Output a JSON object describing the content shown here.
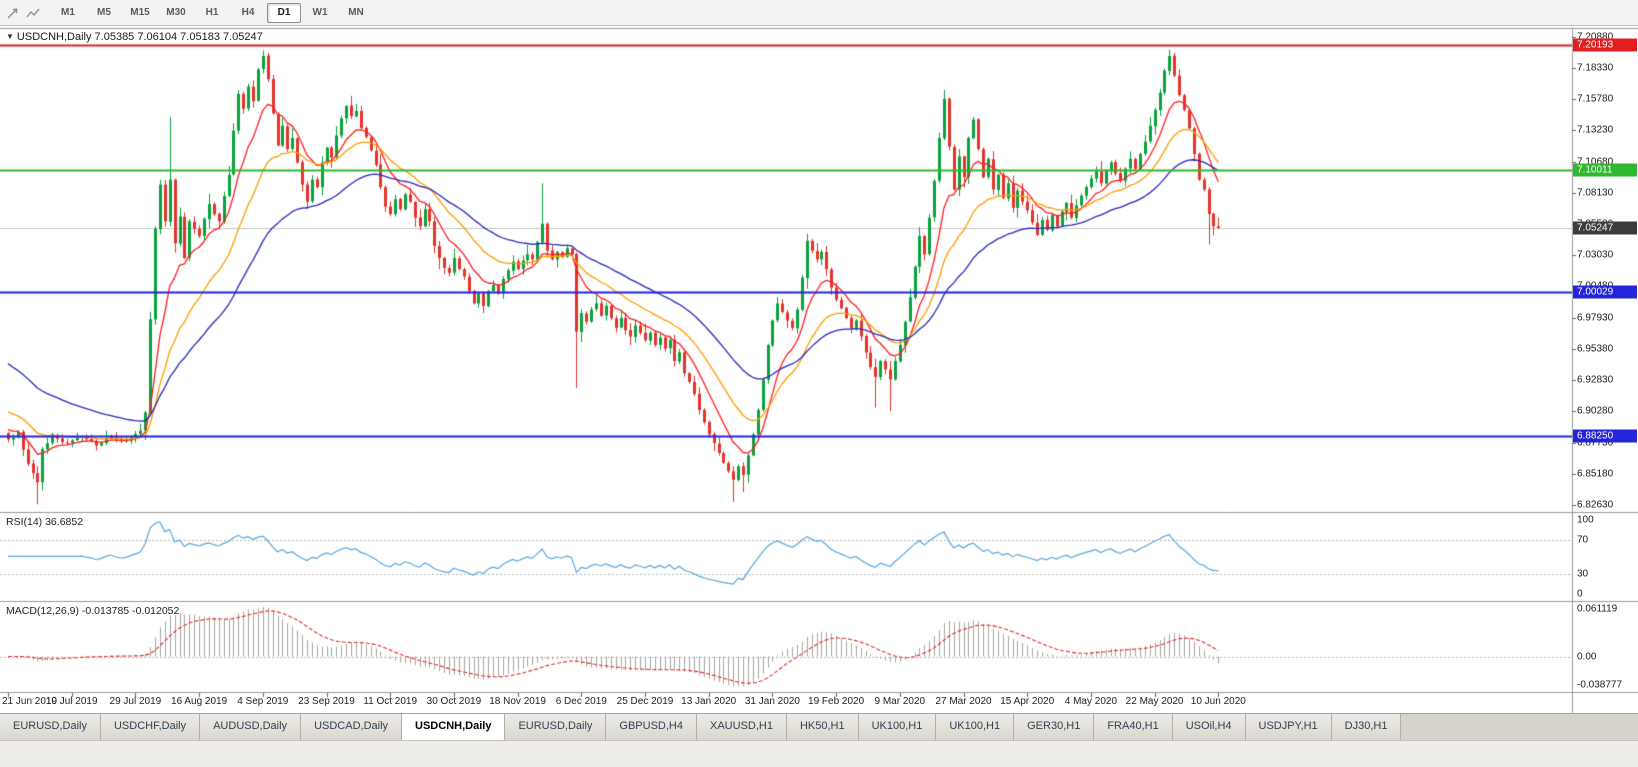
{
  "chart": {
    "title": "USDCNH,Daily 7.05385 7.06104 7.05183 7.05247",
    "symbol": "USDCNH",
    "period": "Daily"
  },
  "toolbar": {
    "timeframes": [
      "M1",
      "M5",
      "M15",
      "M30",
      "H1",
      "H4",
      "D1",
      "W1",
      "MN"
    ],
    "active_timeframe": "D1"
  },
  "indicators": {
    "rsi": {
      "label": "RSI(14) 36.6852",
      "period": 14,
      "value": 36.6852,
      "levels": [
        70,
        30
      ],
      "scale_labels": [
        "100",
        "70",
        "30",
        "0"
      ],
      "color": "#5aa7dc"
    },
    "macd": {
      "label": "MACD(12,26,9) -0.013785 -0.012052",
      "fast": 12,
      "slow": 26,
      "signal_period": 9,
      "value": -0.013785,
      "signal_value": -0.012052,
      "scale_labels": {
        "top": "0.061119",
        "zero": "0.00",
        "bottom": "-0.038777"
      },
      "histogram_color": "#a6a6a6",
      "signal_color": "#e03131"
    }
  },
  "tabs": {
    "items": [
      "EURUSD,Daily",
      "USDCHF,Daily",
      "AUDUSD,Daily",
      "USDCAD,Daily",
      "USDCNH,Daily",
      "EURUSD,Daily",
      "GBPUSD,H4",
      "XAUUSD,H1",
      "HK50,H1",
      "UK100,H1",
      "UK100,H1",
      "GER30,H1",
      "FRA40,H1",
      "USOil,H4",
      "USDJPY,H1",
      "DJ30,H1"
    ],
    "active_index": 4
  },
  "chart_data": {
    "type": "candlestick",
    "symbol": "USDCNH",
    "timeframe": "Daily",
    "last_candle": {
      "open": 7.05385,
      "high": 7.06104,
      "low": 7.05183,
      "close": 7.05247
    },
    "candle_count": 248,
    "colors": {
      "up": "#0aa13e",
      "down": "#e3342c"
    },
    "y_axis": {
      "ticks": [
        "7.20880",
        "7.18330",
        "7.15780",
        "7.13230",
        "7.10680",
        "7.08130",
        "7.05580",
        "7.03030",
        "7.00480",
        "6.97930",
        "6.95380",
        "6.92830",
        "6.90280",
        "6.87730",
        "6.85180",
        "6.82630"
      ]
    },
    "x_axis": {
      "labels": [
        "21 Jun 2019",
        "10 Jul 2019",
        "29 Jul 2019",
        "16 Aug 2019",
        "4 Sep 2019",
        "23 Sep 2019",
        "11 Oct 2019",
        "30 Oct 2019",
        "18 Nov 2019",
        "6 Dec 2019",
        "25 Dec 2019",
        "13 Jan 2020",
        "31 Jan 2020",
        "19 Feb 2020",
        "9 Mar 2020",
        "27 Mar 2020",
        "15 Apr 2020",
        "4 May 2020",
        "22 May 2020",
        "10 Jun 2020"
      ],
      "candles_per_label": 13
    },
    "price_lines": [
      {
        "label": "7.20193",
        "price": 7.20193,
        "color": "#e02020",
        "tag_color": "#e02020",
        "style": "solid"
      },
      {
        "label": "7.10011",
        "price": 7.10011,
        "color": "#2eb82e",
        "tag_color": "#2eb82e",
        "style": "solid"
      },
      {
        "label": "7.05247",
        "price": 7.05247,
        "color": "#c9c9c9",
        "tag_color": "#3c3c3c",
        "style": "current"
      },
      {
        "label": "7.00029",
        "price": 7.00029,
        "color": "#2424d8",
        "tag_color": "#2424d8",
        "style": "solid"
      },
      {
        "label": "6.88250",
        "price": 6.8825,
        "color": "#2424d8",
        "tag_color": "#2424d8",
        "style": "solid"
      }
    ],
    "moving_averages": [
      {
        "name": "fast-ma",
        "period": 9,
        "seed": 6.89,
        "color": "#ff1e1e"
      },
      {
        "name": "medium-ma",
        "period": 20,
        "seed": 6.905,
        "color": "#ff9d00"
      },
      {
        "name": "slow-ma",
        "period": 40,
        "seed": 6.945,
        "color": "#2a2ac0"
      }
    ],
    "close_anchors": [
      [
        0,
        6.88
      ],
      [
        2,
        6.886
      ],
      [
        4,
        6.86
      ],
      [
        6,
        6.845
      ],
      [
        7,
        6.872
      ],
      [
        9,
        6.884
      ],
      [
        12,
        6.877
      ],
      [
        15,
        6.882
      ],
      [
        18,
        6.875
      ],
      [
        21,
        6.883
      ],
      [
        24,
        6.879
      ],
      [
        27,
        6.887
      ],
      [
        28,
        6.902
      ],
      [
        29,
        6.978
      ],
      [
        30,
        7.052
      ],
      [
        31,
        7.088
      ],
      [
        32,
        7.058
      ],
      [
        33,
        7.092
      ],
      [
        34,
        7.04
      ],
      [
        35,
        7.062
      ],
      [
        36,
        7.028
      ],
      [
        37,
        7.058
      ],
      [
        39,
        7.046
      ],
      [
        41,
        7.072
      ],
      [
        43,
        7.058
      ],
      [
        45,
        7.096
      ],
      [
        46,
        7.132
      ],
      [
        47,
        7.162
      ],
      [
        48,
        7.15
      ],
      [
        49,
        7.168
      ],
      [
        50,
        7.156
      ],
      [
        51,
        7.182
      ],
      [
        52,
        7.193
      ],
      [
        53,
        7.174
      ],
      [
        54,
        7.146
      ],
      [
        55,
        7.12
      ],
      [
        56,
        7.136
      ],
      [
        57,
        7.117
      ],
      [
        58,
        7.126
      ],
      [
        59,
        7.106
      ],
      [
        60,
        7.088
      ],
      [
        61,
        7.074
      ],
      [
        62,
        7.092
      ],
      [
        63,
        7.086
      ],
      [
        64,
        7.106
      ],
      [
        65,
        7.118
      ],
      [
        66,
        7.11
      ],
      [
        67,
        7.128
      ],
      [
        68,
        7.142
      ],
      [
        69,
        7.152
      ],
      [
        70,
        7.144
      ],
      [
        71,
        7.148
      ],
      [
        72,
        7.134
      ],
      [
        73,
        7.127
      ],
      [
        74,
        7.116
      ],
      [
        75,
        7.104
      ],
      [
        76,
        7.086
      ],
      [
        77,
        7.07
      ],
      [
        78,
        7.064
      ],
      [
        79,
        7.076
      ],
      [
        80,
        7.068
      ],
      [
        81,
        7.08
      ],
      [
        82,
        7.074
      ],
      [
        83,
        7.061
      ],
      [
        84,
        7.054
      ],
      [
        85,
        7.068
      ],
      [
        86,
        7.058
      ],
      [
        87,
        7.038
      ],
      [
        88,
        7.028
      ],
      [
        89,
        7.02
      ],
      [
        90,
        7.016
      ],
      [
        91,
        7.028
      ],
      [
        92,
        7.019
      ],
      [
        93,
        7.013
      ],
      [
        94,
        7.001
      ],
      [
        95,
        6.991
      ],
      [
        96,
        6.999
      ],
      [
        97,
        6.989
      ],
      [
        98,
        7.001
      ],
      [
        99,
        7.006
      ],
      [
        100,
        6.999
      ],
      [
        101,
        7.011
      ],
      [
        102,
        7.018
      ],
      [
        103,
        7.025
      ],
      [
        104,
        7.019
      ],
      [
        105,
        7.026
      ],
      [
        106,
        7.031
      ],
      [
        107,
        7.027
      ],
      [
        108,
        7.041
      ],
      [
        109,
        7.056
      ],
      [
        110,
        7.034
      ],
      [
        111,
        7.027
      ],
      [
        112,
        7.033
      ],
      [
        113,
        7.029
      ],
      [
        114,
        7.036
      ],
      [
        115,
        7.031
      ],
      [
        116,
        6.968
      ],
      [
        117,
        6.983
      ],
      [
        118,
        6.976
      ],
      [
        119,
        6.986
      ],
      [
        120,
        6.991
      ],
      [
        121,
        6.981
      ],
      [
        122,
        6.989
      ],
      [
        123,
        6.979
      ],
      [
        124,
        6.971
      ],
      [
        125,
        6.979
      ],
      [
        126,
        6.969
      ],
      [
        127,
        6.964
      ],
      [
        128,
        6.973
      ],
      [
        129,
        6.967
      ],
      [
        130,
        6.961
      ],
      [
        131,
        6.967
      ],
      [
        132,
        6.957
      ],
      [
        133,
        6.963
      ],
      [
        134,
        6.954
      ],
      [
        135,
        6.961
      ],
      [
        136,
        6.944
      ],
      [
        137,
        6.951
      ],
      [
        138,
        6.934
      ],
      [
        139,
        6.927
      ],
      [
        140,
        6.917
      ],
      [
        141,
        6.904
      ],
      [
        142,
        6.894
      ],
      [
        143,
        6.884
      ],
      [
        144,
        6.877
      ],
      [
        145,
        6.869
      ],
      [
        146,
        6.861
      ],
      [
        147,
        6.854
      ],
      [
        148,
        6.847
      ],
      [
        149,
        6.858
      ],
      [
        150,
        6.851
      ],
      [
        151,
        6.867
      ],
      [
        152,
        6.884
      ],
      [
        153,
        6.904
      ],
      [
        154,
        6.929
      ],
      [
        155,
        6.957
      ],
      [
        156,
        6.977
      ],
      [
        157,
        6.991
      ],
      [
        158,
        6.984
      ],
      [
        159,
        6.977
      ],
      [
        160,
        6.971
      ],
      [
        161,
        6.986
      ],
      [
        162,
        7.012
      ],
      [
        163,
        7.042
      ],
      [
        164,
        7.034
      ],
      [
        165,
        7.027
      ],
      [
        166,
        7.033
      ],
      [
        167,
        7.019
      ],
      [
        168,
        7.004
      ],
      [
        169,
        6.994
      ],
      [
        170,
        6.987
      ],
      [
        171,
        6.979
      ],
      [
        172,
        6.971
      ],
      [
        173,
        6.977
      ],
      [
        174,
        6.964
      ],
      [
        175,
        6.951
      ],
      [
        176,
        6.939
      ],
      [
        177,
        6.931
      ],
      [
        178,
        6.944
      ],
      [
        179,
        6.937
      ],
      [
        180,
        6.929
      ],
      [
        181,
        6.944
      ],
      [
        182,
        6.957
      ],
      [
        183,
        6.976
      ],
      [
        184,
        6.996
      ],
      [
        185,
        7.021
      ],
      [
        186,
        7.046
      ],
      [
        187,
        7.031
      ],
      [
        188,
        7.061
      ],
      [
        189,
        7.091
      ],
      [
        190,
        7.126
      ],
      [
        191,
        7.158
      ],
      [
        192,
        7.119
      ],
      [
        193,
        7.084
      ],
      [
        194,
        7.111
      ],
      [
        195,
        7.094
      ],
      [
        196,
        7.126
      ],
      [
        197,
        7.141
      ],
      [
        198,
        7.117
      ],
      [
        199,
        7.094
      ],
      [
        200,
        7.109
      ],
      [
        201,
        7.084
      ],
      [
        202,
        7.096
      ],
      [
        203,
        7.077
      ],
      [
        204,
        7.089
      ],
      [
        205,
        7.069
      ],
      [
        206,
        7.083
      ],
      [
        207,
        7.074
      ],
      [
        208,
        7.067
      ],
      [
        209,
        7.057
      ],
      [
        210,
        7.047
      ],
      [
        211,
        7.059
      ],
      [
        212,
        7.051
      ],
      [
        213,
        7.063
      ],
      [
        214,
        7.054
      ],
      [
        215,
        7.066
      ],
      [
        216,
        7.073
      ],
      [
        217,
        7.061
      ],
      [
        218,
        7.071
      ],
      [
        219,
        7.079
      ],
      [
        220,
        7.086
      ],
      [
        221,
        7.093
      ],
      [
        222,
        7.099
      ],
      [
        223,
        7.089
      ],
      [
        224,
        7.099
      ],
      [
        225,
        7.106
      ],
      [
        226,
        7.097
      ],
      [
        227,
        7.091
      ],
      [
        228,
        7.101
      ],
      [
        229,
        7.109
      ],
      [
        230,
        7.101
      ],
      [
        231,
        7.113
      ],
      [
        232,
        7.123
      ],
      [
        233,
        7.136
      ],
      [
        234,
        7.149
      ],
      [
        235,
        7.163
      ],
      [
        236,
        7.181
      ],
      [
        237,
        7.193
      ],
      [
        238,
        7.177
      ],
      [
        239,
        7.161
      ],
      [
        240,
        7.149
      ],
      [
        241,
        7.134
      ],
      [
        242,
        7.113
      ],
      [
        243,
        7.092
      ],
      [
        244,
        7.084
      ],
      [
        245,
        7.064
      ],
      [
        246,
        7.054
      ],
      [
        247,
        7.05247
      ]
    ],
    "wick_overrides": {
      "6": {
        "low": 6.827
      },
      "30": {
        "low": 6.974
      },
      "33": {
        "high": 7.143
      },
      "52": {
        "high": 7.1975
      },
      "109": {
        "high": 7.089
      },
      "116": {
        "low": 6.922
      },
      "148": {
        "low": 6.829
      },
      "150": {
        "low": 6.837
      },
      "163": {
        "high": 7.048
      },
      "177": {
        "low": 6.906
      },
      "180": {
        "low": 6.903
      },
      "191": {
        "high": 7.1651
      },
      "237": {
        "high": 7.1982
      },
      "245": {
        "low": 7.039
      }
    }
  }
}
